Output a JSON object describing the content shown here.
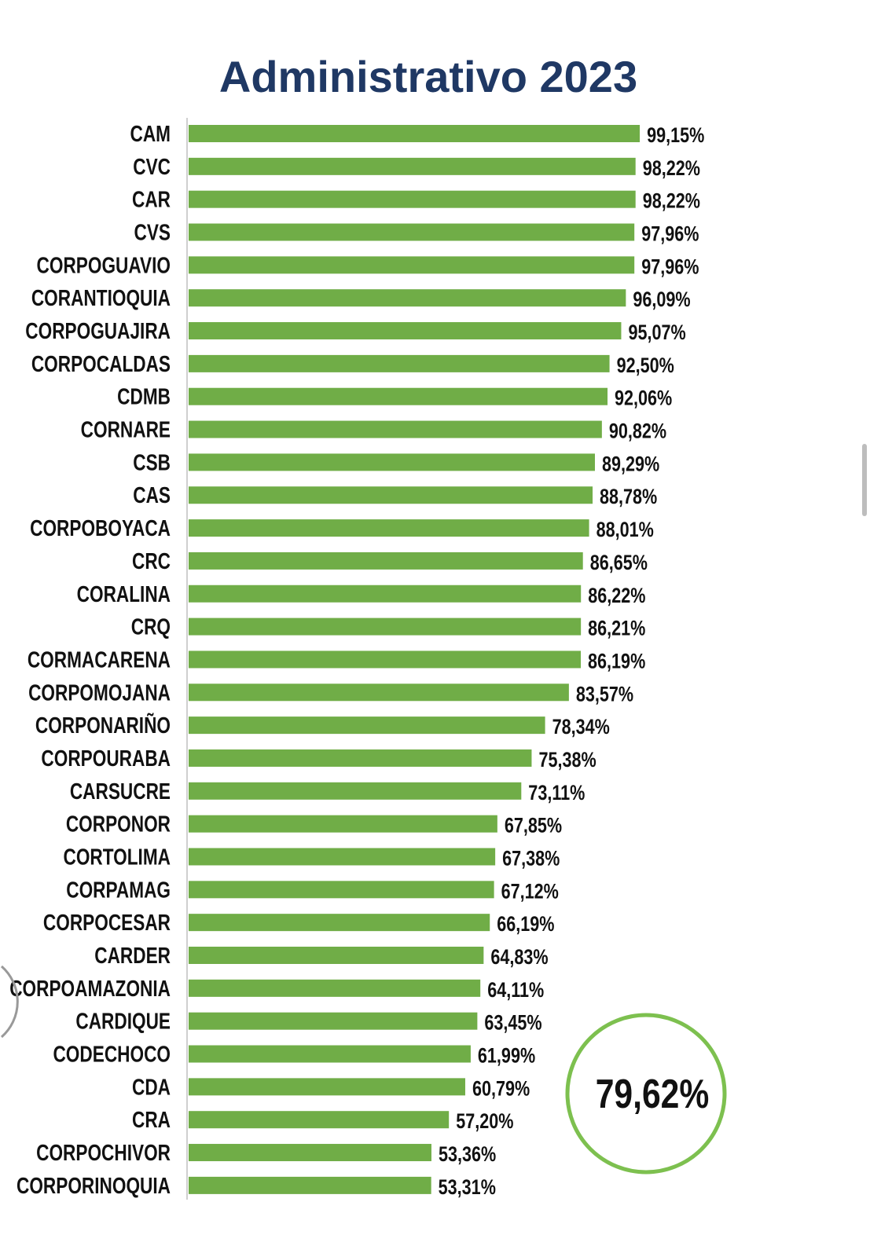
{
  "chart_data": {
    "type": "bar",
    "orientation": "horizontal",
    "title": "Administrativo 2023",
    "categories": [
      "CAM",
      "CVC",
      "CAR",
      "CVS",
      "CORPOGUAVIO",
      "CORANTIOQUIA",
      "CORPOGUAJIRA",
      "CORPOCALDAS",
      "CDMB",
      "CORNARE",
      "CSB",
      "CAS",
      "CORPOBOYACA",
      "CRC",
      "CORALINA",
      "CRQ",
      "CORMACARENA",
      "CORPOMOJANA",
      "CORPONARIÑO",
      "CORPOURABA",
      "CARSUCRE",
      "CORPONOR",
      "CORTOLIMA",
      "CORPAMAG",
      "CORPOCESAR",
      "CARDER",
      "CORPOAMAZONIA",
      "CARDIQUE",
      "CODECHOCO",
      "CDA",
      "CRA",
      "CORPOCHIVOR",
      "CORPORINOQUIA"
    ],
    "values": [
      99.15,
      98.22,
      98.22,
      97.96,
      97.96,
      96.09,
      95.07,
      92.5,
      92.06,
      90.82,
      89.29,
      88.78,
      88.01,
      86.65,
      86.22,
      86.21,
      86.19,
      83.57,
      78.34,
      75.38,
      73.11,
      67.85,
      67.38,
      67.12,
      66.19,
      64.83,
      64.11,
      63.45,
      61.99,
      60.79,
      57.2,
      53.36,
      53.31
    ],
    "data_labels": [
      "99,15%",
      "98,22%",
      "98,22%",
      "97,96%",
      "97,96%",
      "96,09%",
      "95,07%",
      "92,50%",
      "92,06%",
      "90,82%",
      "89,29%",
      "88,78%",
      "88,01%",
      "86,65%",
      "86,22%",
      "86,21%",
      "86,19%",
      "83,57%",
      "78,34%",
      "75,38%",
      "73,11%",
      "67,85%",
      "67,38%",
      "67,12%",
      "66,19%",
      "64,83%",
      "64,11%",
      "63,45%",
      "61,99%",
      "60,79%",
      "57,20%",
      "53,36%",
      "53,31%"
    ],
    "xlim": [
      0,
      100
    ],
    "grid": false,
    "legend": "none",
    "bar_color": "#70ad47",
    "average": {
      "label": "79,62%",
      "value": 79.62,
      "ring_color": "#7dc04f"
    }
  },
  "colors": {
    "title": "#1f3864",
    "text": "#111111"
  }
}
